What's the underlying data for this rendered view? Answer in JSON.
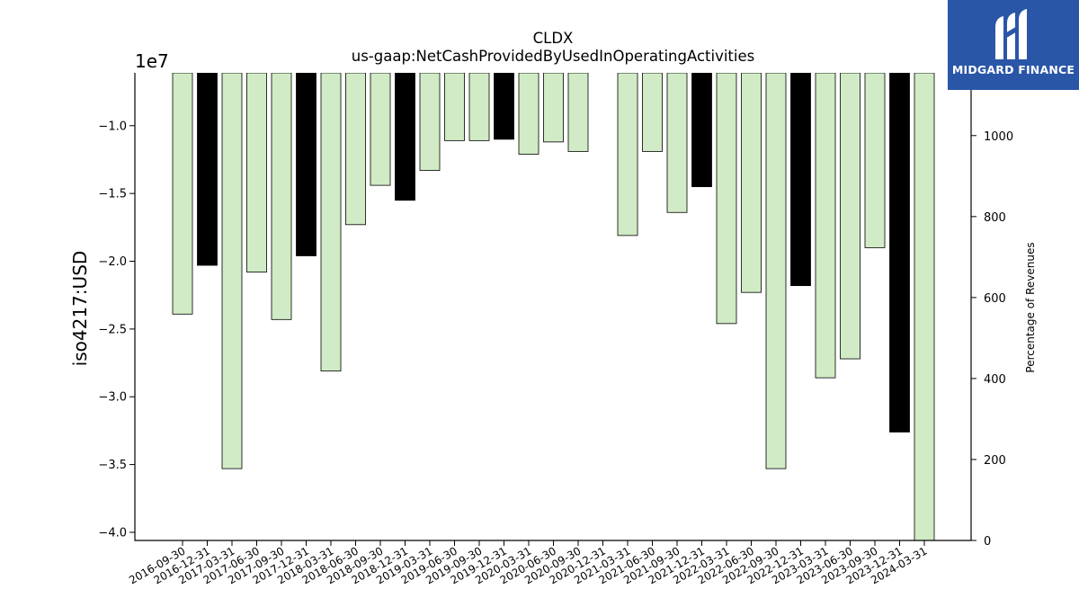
{
  "brand": {
    "name": "MIDGARD FINANCE",
    "logo_icon": "midgard-m-logo-icon",
    "color": "#2a56a8"
  },
  "chart_data": {
    "type": "bar",
    "title": "CLDX",
    "subtitle": "us-gaap:NetCashProvidedByUsedInOperatingActivities",
    "ylabel": "iso4217:USD",
    "y_offset_label": "1e7",
    "y2label": "Percentage of Revenues",
    "ylim": [
      -4.06,
      -0.61
    ],
    "y_ticks": [
      -1.0,
      -1.5,
      -2.0,
      -2.5,
      -3.0,
      -3.5,
      -4.0
    ],
    "y_tick_labels": [
      "−1.0",
      "−1.5",
      "−2.0",
      "−2.5",
      "−3.0",
      "−3.5",
      "−4.0"
    ],
    "y2lim": [
      0,
      1155
    ],
    "y2_ticks": [
      0,
      200,
      400,
      600,
      800,
      1000
    ],
    "grid": false,
    "colors": {
      "quarterly": "#d0ebc5",
      "annual": "#000000",
      "edge": "#000000"
    },
    "categories": [
      "2016-09-30",
      "2016-12-31",
      "2017-03-31",
      "2017-06-30",
      "2017-09-30",
      "2017-12-31",
      "2018-03-31",
      "2018-06-30",
      "2018-09-30",
      "2018-12-31",
      "2019-03-31",
      "2019-06-30",
      "2019-09-30",
      "2019-12-31",
      "2020-03-31",
      "2020-06-30",
      "2020-09-30",
      "2020-12-31",
      "2021-03-31",
      "2021-06-30",
      "2021-09-30",
      "2021-12-31",
      "2022-03-31",
      "2022-06-30",
      "2022-09-30",
      "2022-12-31",
      "2023-03-31",
      "2023-06-30",
      "2023-09-30",
      "2023-12-31",
      "2024-03-31"
    ],
    "values": [
      -2.39,
      -2.03,
      -3.53,
      -2.08,
      -2.43,
      -1.96,
      -2.81,
      -1.73,
      -1.44,
      -1.55,
      -1.33,
      -1.11,
      -1.11,
      -1.1,
      -1.21,
      -1.12,
      -1.19,
      null,
      -1.81,
      -1.19,
      -1.64,
      -1.45,
      -2.46,
      -2.23,
      -3.53,
      -2.18,
      -2.86,
      -2.72,
      -1.9,
      -3.26,
      -4.1
    ],
    "annual": [
      false,
      true,
      false,
      false,
      false,
      true,
      false,
      false,
      false,
      true,
      false,
      false,
      false,
      true,
      false,
      false,
      false,
      true,
      false,
      false,
      false,
      true,
      false,
      false,
      false,
      true,
      false,
      false,
      false,
      true,
      false
    ]
  }
}
